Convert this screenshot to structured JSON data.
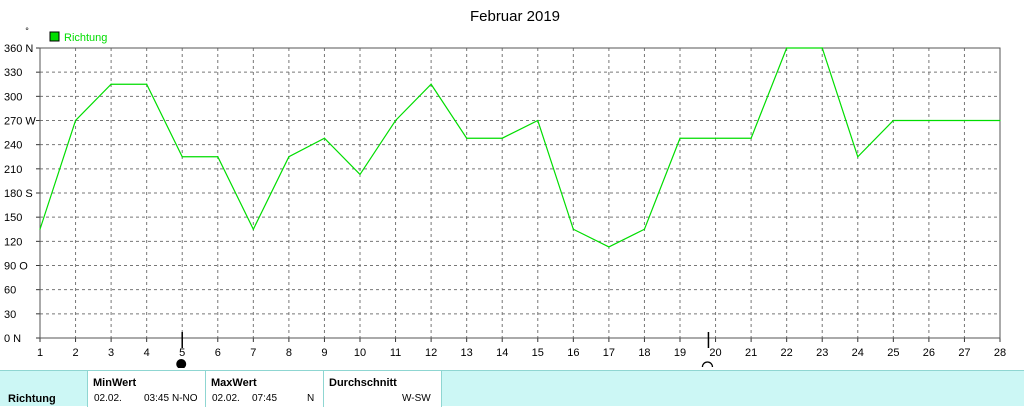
{
  "chart_data": {
    "type": "line",
    "title": "Februar 2019",
    "unit": "°",
    "x": [
      1,
      2,
      3,
      4,
      5,
      6,
      7,
      8,
      9,
      10,
      11,
      12,
      13,
      14,
      15,
      16,
      17,
      18,
      19,
      20,
      21,
      22,
      23,
      24,
      25,
      26,
      27,
      28
    ],
    "series": [
      {
        "name": "Richtung",
        "color": "#00dd00",
        "values": [
          135,
          270,
          315,
          315,
          225,
          225,
          135,
          225,
          248,
          203,
          270,
          315,
          248,
          248,
          270,
          135,
          113,
          135,
          248,
          248,
          248,
          360,
          360,
          225,
          270,
          270,
          270,
          270
        ]
      }
    ],
    "ylim": [
      0,
      360
    ],
    "yticks": [
      "0 N",
      "30",
      "60",
      "90 O",
      "120",
      "150",
      "180 S",
      "210",
      "240",
      "270 W",
      "300",
      "330",
      "360 N"
    ],
    "xticks": [
      "1",
      "2",
      "3",
      "4",
      "5",
      "6",
      "7",
      "8",
      "9",
      "10",
      "11",
      "12",
      "13",
      "14",
      "15",
      "16",
      "17",
      "18",
      "19",
      "20",
      "21",
      "22",
      "23",
      "24",
      "25",
      "26",
      "27",
      "28"
    ],
    "grid": true,
    "legend_position": "top-left",
    "moon_phases": [
      {
        "x": 5,
        "phase": "full-moon",
        "glyph": "●"
      },
      {
        "x": 19.8,
        "phase": "new-moon",
        "glyph": "◯"
      }
    ]
  },
  "summary": {
    "series_label": "Richtung",
    "min": {
      "label": "MinWert",
      "date": "02.02.",
      "time": "03:45",
      "value": "N-NO"
    },
    "max": {
      "label": "MaxWert",
      "date": "02.02.",
      "time": "07:45",
      "value": "N"
    },
    "avg": {
      "label": "Durchschnitt",
      "value": "W-SW"
    }
  }
}
